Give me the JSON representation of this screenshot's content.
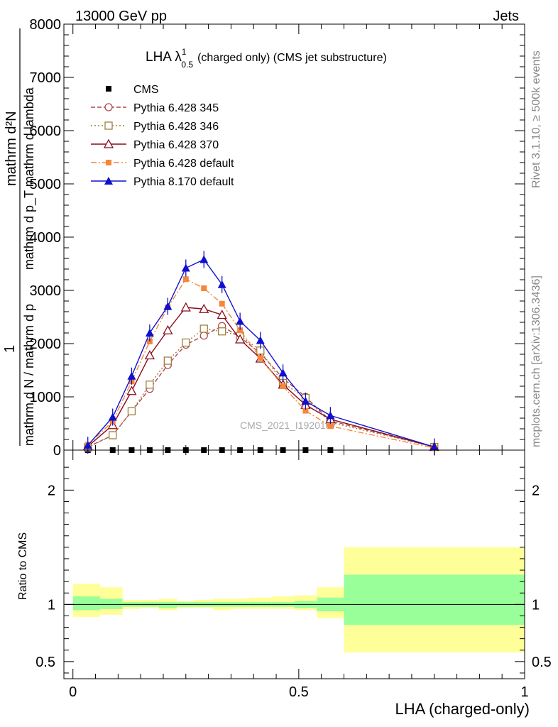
{
  "header": {
    "energy_label": "13000 GeV pp",
    "process_label": "Jets"
  },
  "side": {
    "rivet_label": "Rivet 3.1.10, ≥ 500k events",
    "mcplots_label": "mcplots.cern.ch [arXiv:1306.3436]"
  },
  "colors": {
    "cms": "#000000",
    "p345": "#b2474f",
    "p346": "#a08040",
    "p370": "#8b0a1a",
    "p6def": "#f5873a",
    "p8def": "#1010cc",
    "band_inner": "#99ff99",
    "band_outer": "#ffff99"
  },
  "chart_data": [
    {
      "type": "line",
      "title": "LHA λ",
      "title_sup": "1",
      "title_sub": "0.5",
      "title_rest": "(charged only) (CMS jet substructure)",
      "ylabel": "1 / mathrm d N / mathrm d p_T mathrm d p_T mathrm d lambda  mathrm d^2N",
      "ylabel_parts": {
        "numer": "mathrm d²N",
        "denom": "mathrm d p_T mathrm d lambda",
        "sub_prefix": "1",
        "rest": "mathrm d N / mathrm d p"
      },
      "xlim": [
        -0.02,
        1.0
      ],
      "ylim": [
        0,
        8000
      ],
      "yticks": [
        0,
        1000,
        2000,
        3000,
        4000,
        5000,
        6000,
        7000,
        8000
      ],
      "ytick_labels": [
        "0",
        "1000",
        "2000",
        "3000",
        "4000",
        "5000",
        "6000",
        "7000",
        "8000"
      ],
      "legend_position": "top-left",
      "watermark": "CMS_2021_I1920187",
      "x": [
        0.033,
        0.088,
        0.13,
        0.17,
        0.21,
        0.25,
        0.29,
        0.33,
        0.37,
        0.415,
        0.465,
        0.515,
        0.57,
        0.8
      ],
      "series": [
        {
          "name": "CMS",
          "key": "cms",
          "marker": "square-filled",
          "dash": "none",
          "values": [
            0,
            0,
            0,
            0,
            0,
            0,
            0,
            0,
            0,
            0,
            0,
            0,
            0,
            null
          ]
        },
        {
          "name": "Pythia 6.428 345",
          "key": "p345",
          "marker": "circle-open",
          "dash": "6,3",
          "values": [
            60,
            280,
            730,
            1150,
            1600,
            1980,
            2150,
            2330,
            2120,
            1820,
            1350,
            1000,
            550,
            60
          ]
        },
        {
          "name": "Pythia 6.428 346",
          "key": "p346",
          "marker": "square-open",
          "dash": "2,3",
          "values": [
            50,
            280,
            730,
            1230,
            1680,
            2020,
            2280,
            2230,
            2150,
            1870,
            1260,
            980,
            520,
            60
          ]
        },
        {
          "name": "Pythia 6.428 370",
          "key": "p370",
          "marker": "triangle-open",
          "dash": "none",
          "values": [
            70,
            470,
            1110,
            1780,
            2250,
            2680,
            2650,
            2540,
            2080,
            1720,
            1230,
            850,
            580,
            60
          ]
        },
        {
          "name": "Pythia 6.428 default",
          "key": "p6def",
          "marker": "square-filled",
          "dash": "8,3,2,3",
          "values": [
            100,
            540,
            1290,
            2040,
            2680,
            3210,
            3040,
            2750,
            2250,
            1730,
            1200,
            740,
            450,
            40
          ]
        },
        {
          "name": "Pythia 8.170 default",
          "key": "p8def",
          "marker": "triangle-filled",
          "dash": "none",
          "values": [
            90,
            620,
            1390,
            2200,
            2700,
            3420,
            3580,
            3110,
            2420,
            2060,
            1450,
            920,
            650,
            60
          ]
        }
      ]
    },
    {
      "type": "area",
      "title": "",
      "ylabel": "Ratio to CMS",
      "xlabel": "LHA (charged-only)",
      "xlim": [
        -0.02,
        1.0
      ],
      "ylim": [
        0.35,
        2.35
      ],
      "yticks": [
        0.5,
        1,
        2
      ],
      "ytick_labels": [
        "0.5",
        "1",
        "2"
      ],
      "xticks": [
        0,
        0.5,
        1
      ],
      "xtick_labels": [
        "0",
        "0.5",
        "1"
      ],
      "reference_line": 1,
      "bins": [
        {
          "lo": 0.0,
          "hi": 0.06,
          "inner": [
            0.95,
            1.07
          ],
          "outer": [
            0.89,
            1.18
          ]
        },
        {
          "lo": 0.06,
          "hi": 0.11,
          "inner": [
            0.96,
            1.05
          ],
          "outer": [
            0.91,
            1.15
          ]
        },
        {
          "lo": 0.11,
          "hi": 0.15,
          "inner": [
            0.98,
            1.02
          ],
          "outer": [
            0.96,
            1.04
          ]
        },
        {
          "lo": 0.15,
          "hi": 0.19,
          "inner": [
            0.98,
            1.02
          ],
          "outer": [
            0.97,
            1.04
          ]
        },
        {
          "lo": 0.19,
          "hi": 0.23,
          "inner": [
            0.97,
            1.02
          ],
          "outer": [
            0.95,
            1.05
          ]
        },
        {
          "lo": 0.23,
          "hi": 0.27,
          "inner": [
            0.98,
            1.02
          ],
          "outer": [
            0.97,
            1.03
          ]
        },
        {
          "lo": 0.27,
          "hi": 0.31,
          "inner": [
            0.98,
            1.02
          ],
          "outer": [
            0.97,
            1.04
          ]
        },
        {
          "lo": 0.31,
          "hi": 0.35,
          "inner": [
            0.98,
            1.02
          ],
          "outer": [
            0.95,
            1.05
          ]
        },
        {
          "lo": 0.35,
          "hi": 0.39,
          "inner": [
            0.98,
            1.02
          ],
          "outer": [
            0.96,
            1.05
          ]
        },
        {
          "lo": 0.39,
          "hi": 0.44,
          "inner": [
            0.98,
            1.02
          ],
          "outer": [
            0.96,
            1.06
          ]
        },
        {
          "lo": 0.44,
          "hi": 0.49,
          "inner": [
            0.98,
            1.02
          ],
          "outer": [
            0.96,
            1.07
          ]
        },
        {
          "lo": 0.49,
          "hi": 0.54,
          "inner": [
            0.97,
            1.03
          ],
          "outer": [
            0.95,
            1.08
          ]
        },
        {
          "lo": 0.54,
          "hi": 0.6,
          "inner": [
            0.94,
            1.06
          ],
          "outer": [
            0.88,
            1.15
          ]
        },
        {
          "lo": 0.6,
          "hi": 1.0,
          "inner": [
            0.82,
            1.26
          ],
          "outer": [
            0.58,
            1.5
          ]
        }
      ]
    }
  ]
}
